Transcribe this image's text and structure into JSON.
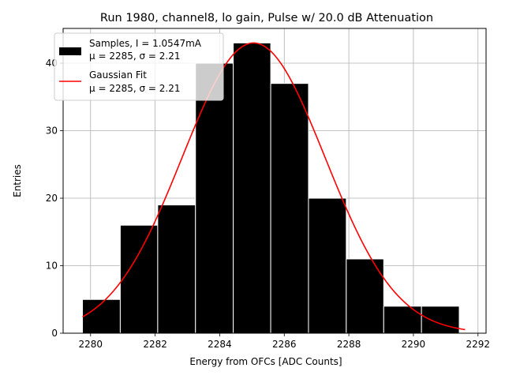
{
  "chart_data": {
    "type": "bar",
    "title": "Run 1980, channel8, lo gain, Pulse w/ 20.0 dB Attenuation",
    "xlabel": "Energy from OFCs [ADC Counts]",
    "ylabel": "Entries",
    "xlim": [
      2279.15,
      2292.25
    ],
    "ylim": [
      0,
      45.15
    ],
    "xticks": [
      2280,
      2282,
      2284,
      2286,
      2288,
      2290,
      2292
    ],
    "yticks": [
      0,
      10,
      20,
      30,
      40
    ],
    "grid": true,
    "legend_position": "top-left",
    "bins": [
      {
        "x0": 2279.75,
        "x1": 2280.92,
        "count": 5
      },
      {
        "x0": 2280.92,
        "x1": 2282.08,
        "count": 16
      },
      {
        "x0": 2282.08,
        "x1": 2283.25,
        "count": 19
      },
      {
        "x0": 2283.25,
        "x1": 2284.42,
        "count": 40
      },
      {
        "x0": 2284.42,
        "x1": 2285.58,
        "count": 43
      },
      {
        "x0": 2285.58,
        "x1": 2286.75,
        "count": 37
      },
      {
        "x0": 2286.75,
        "x1": 2287.92,
        "count": 20
      },
      {
        "x0": 2287.92,
        "x1": 2289.08,
        "count": 11
      },
      {
        "x0": 2289.08,
        "x1": 2290.25,
        "count": 4
      },
      {
        "x0": 2290.25,
        "x1": 2291.42,
        "count": 4
      }
    ],
    "series": [
      {
        "name": "Samples, I = 1.0547mA",
        "stats": "μ = 2285, σ = 2.21",
        "kind": "histogram",
        "color": "#000000"
      },
      {
        "name": "Gaussian Fit",
        "stats": "μ = 2285, σ = 2.21",
        "kind": "line",
        "color": "#ff0000",
        "fit": {
          "amplitude": 43,
          "mean": 2285.05,
          "sigma": 2.21,
          "x_range": [
            2279.75,
            2291.6
          ]
        }
      }
    ]
  }
}
